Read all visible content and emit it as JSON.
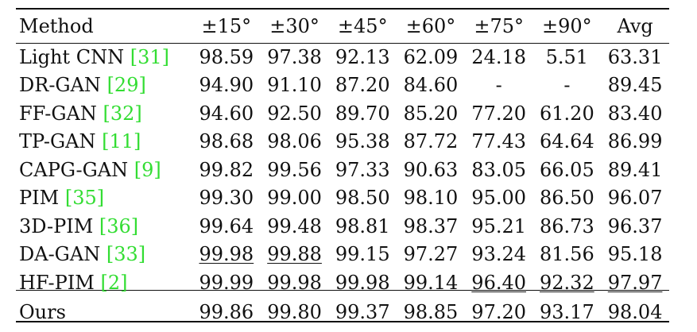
{
  "columns": [
    "Method",
    "±15°",
    "±30°",
    "±45°",
    "±60°",
    "±75°",
    "±90°",
    "Avg"
  ],
  "rows": [
    {
      "method": "Light CNN ",
      "cite": "[31]",
      "values": [
        "98.59",
        "97.38",
        "92.13",
        "62.09",
        "24.18",
        "5.51",
        "63.31"
      ]
    },
    {
      "method": "DR-GAN ",
      "cite": "[29]",
      "values": [
        "94.90",
        "91.10",
        "87.20",
        "84.60",
        "-",
        "-",
        "89.45"
      ]
    },
    {
      "method": "FF-GAN ",
      "cite": "[32]",
      "values": [
        "94.60",
        "92.50",
        "89.70",
        "85.20",
        "77.20",
        "61.20",
        "83.40"
      ]
    },
    {
      "method": "TP-GAN ",
      "cite": "[11]",
      "values": [
        "98.68",
        "98.06",
        "95.38",
        "87.72",
        "77.43",
        "64.64",
        "86.99"
      ]
    },
    {
      "method": "CAPG-GAN ",
      "cite": "[9]",
      "values": [
        "99.82",
        "99.56",
        "97.33",
        "90.63",
        "83.05",
        "66.05",
        "89.41"
      ]
    },
    {
      "method": "PIM ",
      "cite": "[35]",
      "values": [
        "99.30",
        "99.00",
        "98.50",
        "98.10",
        "95.00",
        "86.50",
        "96.07"
      ]
    },
    {
      "method": "3D-PIM ",
      "cite": "[36]",
      "values": [
        "99.64",
        "99.48",
        "98.81",
        "98.37",
        "95.21",
        "86.73",
        "96.37"
      ]
    },
    {
      "method": "DA-GAN ",
      "cite": "[33]",
      "values": [
        "99.98",
        "99.88",
        "99.15",
        "97.27",
        "93.24",
        "81.56",
        "95.18"
      ]
    },
    {
      "method": "HF-PIM ",
      "cite": "[2]",
      "values": [
        "99.99",
        "99.98",
        "99.98",
        "99.14",
        "96.40",
        "92.32",
        "97.97"
      ]
    },
    {
      "method": "Ours",
      "cite": "",
      "values": [
        "99.86",
        "99.80",
        "99.37",
        "98.85",
        "97.20",
        "93.17",
        "98.04"
      ]
    }
  ],
  "colors": {
    "citation": "#33dd33",
    "text": "#111111"
  }
}
